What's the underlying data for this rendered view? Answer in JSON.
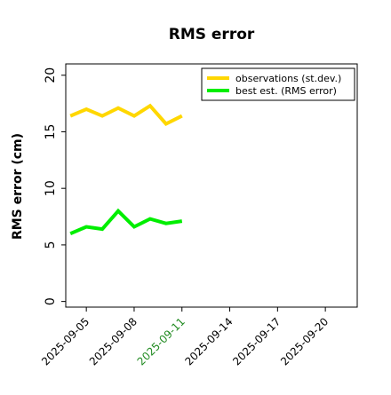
{
  "chart_data": {
    "type": "line",
    "title": "RMS error",
    "ylabel": "RMS error (cm)",
    "xlabel": "",
    "ylim": [
      -0.5,
      21
    ],
    "yticks": [
      0,
      5,
      10,
      15,
      20
    ],
    "xlim": [
      "2025-09-03T17:00",
      "2025-09-22"
    ],
    "xticks": [
      {
        "date": "2025-09-05",
        "label": "2025-09-05",
        "color": "#000000"
      },
      {
        "date": "2025-09-08",
        "label": "2025-09-08",
        "color": "#000000"
      },
      {
        "date": "2025-09-11",
        "label": "2025-09-11",
        "color": "#228B22"
      },
      {
        "date": "2025-09-14",
        "label": "2025-09-14",
        "color": "#000000"
      },
      {
        "date": "2025-09-17",
        "label": "2025-09-17",
        "color": "#000000"
      },
      {
        "date": "2025-09-20",
        "label": "2025-09-20",
        "color": "#000000"
      }
    ],
    "x": [
      "2025-09-04",
      "2025-09-05",
      "2025-09-06",
      "2025-09-07",
      "2025-09-08",
      "2025-09-09",
      "2025-09-10",
      "2025-09-11"
    ],
    "series": [
      {
        "name": "observations (st.dev.)",
        "color": "#FFD700",
        "values": [
          16.4,
          17.0,
          16.4,
          17.1,
          16.4,
          17.3,
          15.7,
          16.4
        ]
      },
      {
        "name": "best est. (RMS error)",
        "color": "#00EE00",
        "values": [
          6.0,
          6.6,
          6.4,
          8.0,
          6.6,
          7.3,
          6.9,
          7.1
        ]
      }
    ],
    "legend_position": "top-right",
    "grid": false
  }
}
